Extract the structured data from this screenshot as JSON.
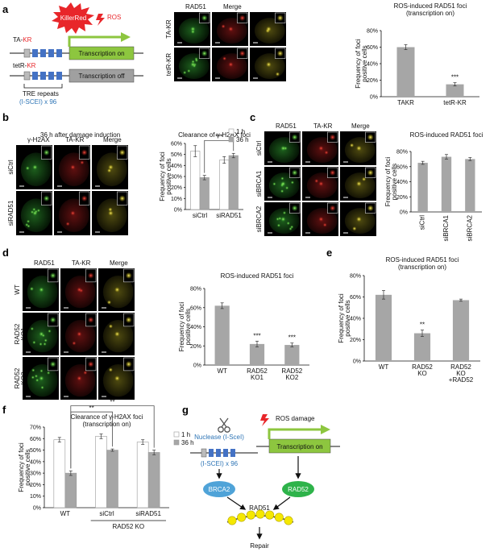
{
  "panel_labels": [
    "a",
    "b",
    "c",
    "d",
    "e",
    "f",
    "g"
  ],
  "panel_a": {
    "killerred": "KillerRed",
    "ros": "ROS",
    "ta_kr_prefix": "TA-",
    "ta_kr_suffix": "KR",
    "tetr_kr_prefix": "tetR-",
    "tetr_kr_suffix": "KR",
    "transcription_on": "Transcription on",
    "transcription_off": "Transcription off",
    "tre_repeats": "TRE repeats",
    "isce": "(I-SCEI) x 96",
    "micro_header": [
      "RAD51",
      "Merge"
    ],
    "micro_rows": [
      "TA-KR",
      "tetR-KR"
    ]
  },
  "panel_b": {
    "caption": "36 h after damage induction",
    "micro_header": [
      "γ-H2AX",
      "TA-KR",
      "Merge"
    ],
    "micro_rows": [
      "siCtrl",
      "siRAD51"
    ]
  },
  "panel_c": {
    "micro_header": [
      "RAD51",
      "TA-KR",
      "Merge"
    ],
    "micro_rows": [
      "siCtrl",
      "siBRCA1",
      "siBRCA2"
    ]
  },
  "panel_d": {
    "micro_header": [
      "RAD51",
      "TA-KR",
      "Merge"
    ],
    "micro_rows": [
      "WT",
      "RAD52 KO1",
      "RAD52 KO2"
    ]
  },
  "panel_g": {
    "nuclease": "Nuclease (I-SceI)",
    "isce": "(I-SCEI) x 96",
    "ros_damage": "ROS damage",
    "transcription_on": "Transcription on",
    "brca2": "BRCA2",
    "rad52": "RAD52",
    "rad51": "RAD51",
    "repair": "Repair"
  },
  "colors": {
    "bar_gray": "#a6a6a6",
    "bar_white": "#ffffff",
    "green_box": "#8dc63f",
    "gray_box": "#a0a0a0",
    "repeat_blue": "#4472c4",
    "killer_red": "#e8262a",
    "brca2_fill": "#4fa3d8",
    "rad52_fill": "#2eb34a",
    "rad51_fill": "#f5e800",
    "tre_label": "#2e75b6"
  },
  "chart_data": [
    {
      "id": "a",
      "type": "bar",
      "title": "ROS-induced RAD51 foci\n(transcription on)",
      "ylabel": "Frequency of foci positive cells",
      "categories": [
        "TAKR",
        "tetR-KR"
      ],
      "values": [
        60,
        15
      ],
      "errors": [
        3,
        2
      ],
      "ylim": [
        0,
        80
      ],
      "yticks": [
        0,
        20,
        40,
        60,
        80
      ],
      "tick_format": "%",
      "annotations": [
        {
          "category": "tetR-KR",
          "text": "***"
        }
      ]
    },
    {
      "id": "b",
      "type": "bar",
      "title": "Clearance of γ-H2AX foci",
      "ylabel": "Frequency of foci positive cells",
      "categories": [
        "siCtrl",
        "siRAD51"
      ],
      "series": [
        {
          "name": "1 h",
          "values": [
            53,
            45
          ],
          "errors": [
            5,
            3
          ]
        },
        {
          "name": "36 h",
          "values": [
            29,
            49
          ],
          "errors": [
            2,
            2
          ]
        }
      ],
      "ylim": [
        0,
        60
      ],
      "yticks": [
        0,
        10,
        20,
        30,
        40,
        50,
        60
      ],
      "tick_format": "%",
      "legend": "top-right",
      "annotations": [
        {
          "text": "***",
          "between": [
            "siCtrl:36 h",
            "siRAD51:36 h"
          ]
        }
      ]
    },
    {
      "id": "c",
      "type": "bar",
      "title": "ROS-induced RAD51 foci",
      "ylabel": "Frequency of foci positive cells",
      "categories": [
        "siCtrl",
        "siBRCA1",
        "siBRCA2"
      ],
      "values": [
        65,
        73,
        70
      ],
      "errors": [
        2,
        3,
        2
      ],
      "ylim": [
        0,
        80
      ],
      "yticks": [
        0,
        20,
        40,
        60,
        80
      ],
      "tick_format": "%",
      "xlabel_rotation": -90
    },
    {
      "id": "d",
      "type": "bar",
      "title": "ROS-induced RAD51 foci",
      "ylabel": "Frequency of foci positive cells",
      "categories": [
        "WT",
        "RAD52\nKO1",
        "RAD52\nKO2"
      ],
      "values": [
        62,
        22,
        21
      ],
      "errors": [
        3,
        3,
        2
      ],
      "ylim": [
        0,
        80
      ],
      "yticks": [
        0,
        20,
        40,
        60,
        80
      ],
      "tick_format": "%",
      "annotations": [
        {
          "category": "RAD52\nKO1",
          "text": "***"
        },
        {
          "category": "RAD52\nKO2",
          "text": "***"
        }
      ]
    },
    {
      "id": "e",
      "type": "bar",
      "title": "ROS-induced RAD51 foci\n(transcription on)",
      "ylabel": "Frequency of foci positive cells",
      "categories": [
        "WT",
        "RAD52\nKO",
        "RAD52\nKO\n+RAD52"
      ],
      "values": [
        62,
        26,
        57
      ],
      "errors": [
        4,
        3,
        1
      ],
      "ylim": [
        0,
        80
      ],
      "yticks": [
        0,
        20,
        40,
        60,
        80
      ],
      "tick_format": "%",
      "annotations": [
        {
          "category": "RAD52\nKO",
          "text": "**"
        }
      ]
    },
    {
      "id": "f",
      "type": "bar",
      "title": "Clearance of γ-H2AX foci\n(transcription on)",
      "ylabel": "Frequency of foci positive cells",
      "categories": [
        "WT",
        "siCtrl",
        "siRAD51"
      ],
      "group_label": "RAD52 KO",
      "series": [
        {
          "name": "1 h",
          "values": [
            59,
            62,
            57
          ],
          "errors": [
            2,
            2,
            2
          ]
        },
        {
          "name": "36 h",
          "values": [
            30,
            50,
            48
          ],
          "errors": [
            2,
            1,
            2
          ]
        }
      ],
      "ylim": [
        0,
        70
      ],
      "yticks": [
        0,
        10,
        20,
        30,
        40,
        50,
        60,
        70
      ],
      "tick_format": "%",
      "legend": "right",
      "annotations": [
        {
          "text": "**",
          "between": [
            "WT:36 h",
            "siCtrl:36 h"
          ]
        },
        {
          "text": "**",
          "between": [
            "WT:36 h",
            "siRAD51:36 h"
          ]
        }
      ]
    }
  ]
}
